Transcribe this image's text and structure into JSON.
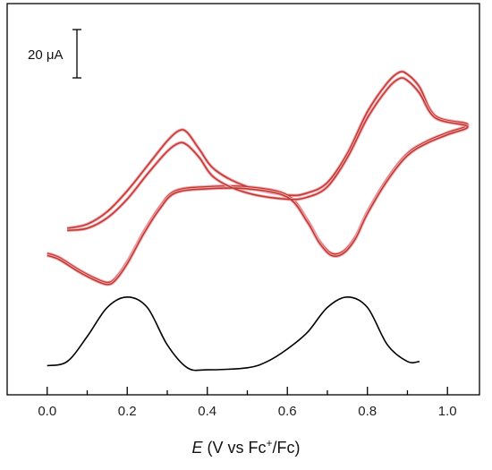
{
  "chart_data": {
    "type": "line",
    "xlabel": {
      "var": "E",
      "text_pre": " (V vs Fc",
      "sup": "+",
      "text_post": "/Fc)"
    },
    "xlim": [
      -0.1,
      1.08
    ],
    "x_ticks": [
      "0.0",
      "0.2",
      "0.4",
      "0.6",
      "0.8",
      "1.0"
    ],
    "y_ticks_shown": false,
    "grid": false,
    "scale_bar": {
      "label": "20 μA"
    },
    "colors": {
      "cv": "#c0392b",
      "cv_shadow": "#f0a8b4",
      "dpv": "#000000",
      "axis": "#000000"
    },
    "series": [
      {
        "kind": "cv-scan-1",
        "x": [
          0.05,
          0.1,
          0.15,
          0.2,
          0.25,
          0.3,
          0.33,
          0.35,
          0.38,
          0.42,
          0.5,
          0.6,
          0.65,
          0.7,
          0.75,
          0.8,
          0.85,
          0.88,
          0.9,
          0.93,
          0.97,
          1.05,
          1.0,
          0.95,
          0.9,
          0.85,
          0.8,
          0.77,
          0.74,
          0.71,
          0.68,
          0.65,
          0.6,
          0.5,
          0.4,
          0.32,
          0.28,
          0.24,
          0.2,
          0.17,
          0.15,
          0.12,
          0.08,
          0.03,
          0.0
        ],
        "y": [
          -12,
          -11,
          -8,
          -3,
          3,
          9,
          11.5,
          11,
          7,
          2,
          -2,
          -4,
          -3.5,
          -1,
          6,
          16,
          23,
          25.5,
          25,
          22,
          15,
          13,
          11,
          9,
          6,
          0,
          -8,
          -14,
          -17.5,
          -18,
          -15,
          -10,
          -4,
          -2,
          -2,
          -3,
          -7,
          -13,
          -20,
          -24,
          -25,
          -24,
          -22,
          -19,
          -18
        ]
      },
      {
        "kind": "cv-scan-2",
        "x": [
          0.05,
          0.1,
          0.15,
          0.2,
          0.25,
          0.3,
          0.33,
          0.35,
          0.38,
          0.42,
          0.5,
          0.6,
          0.65,
          0.7,
          0.75,
          0.8,
          0.85,
          0.88,
          0.9,
          0.93,
          0.97,
          1.05,
          1.0,
          0.95,
          0.9,
          0.85,
          0.8,
          0.77,
          0.74,
          0.71,
          0.68,
          0.65,
          0.6,
          0.5,
          0.4,
          0.32,
          0.28,
          0.24,
          0.2,
          0.17,
          0.15,
          0.12,
          0.08,
          0.03,
          0.0
        ],
        "y": [
          -12.5,
          -12,
          -9.5,
          -5,
          1,
          6.5,
          8.5,
          8,
          5,
          0,
          -3.5,
          -5,
          -4.5,
          -2,
          5,
          14.5,
          21.5,
          24,
          23.5,
          20.5,
          14.5,
          12.5,
          10.5,
          8.5,
          5.5,
          -0.5,
          -8.5,
          -14.5,
          -18,
          -18.5,
          -15.5,
          -10.5,
          -4.5,
          -2.5,
          -2.5,
          -3.5,
          -7.5,
          -13.5,
          -20.5,
          -24.5,
          -25.5,
          -24.5,
          -22.5,
          -19.5,
          -18.5
        ]
      },
      {
        "kind": "dpv",
        "x": [
          0.0,
          0.05,
          0.1,
          0.15,
          0.2,
          0.25,
          0.3,
          0.35,
          0.4,
          0.5,
          0.55,
          0.6,
          0.65,
          0.7,
          0.75,
          0.8,
          0.85,
          0.9,
          0.93
        ],
        "y": [
          -45,
          -44,
          -38,
          -31,
          -28.5,
          -31,
          -40,
          -45.5,
          -46,
          -45.5,
          -44,
          -41,
          -37,
          -31,
          -28.5,
          -31,
          -40,
          -44,
          -44
        ]
      }
    ]
  }
}
